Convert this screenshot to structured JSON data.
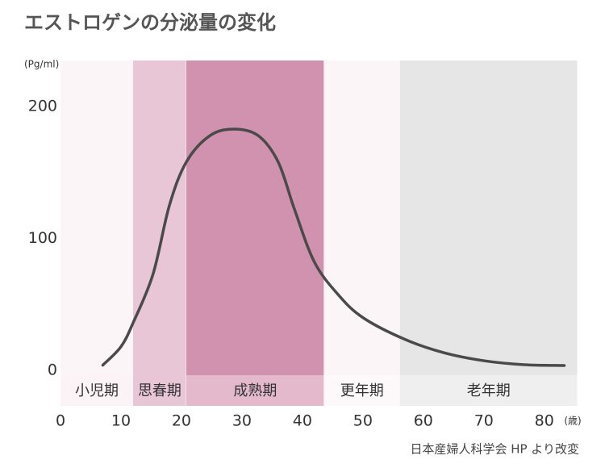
{
  "chart_data": {
    "type": "line",
    "title": "エストロゲンの分泌量の変化",
    "y_unit": "(Pg/ml)",
    "x_unit": "(歳)",
    "source": "日本産婦人科学会 HP より改変",
    "x": [
      7,
      10,
      12,
      15.3,
      18,
      20.8,
      24.7,
      28.7,
      32.7,
      36,
      38.7,
      42,
      46,
      50,
      56.7,
      63.3,
      70,
      76.7,
      83.3
    ],
    "values": [
      4,
      18,
      36,
      73,
      125,
      158,
      178,
      183,
      178,
      158,
      122,
      82,
      57,
      40,
      24,
      13.5,
      7.3,
      4.3,
      3.7
    ],
    "color": "#4a4a4a",
    "xlim": [
      0,
      85.5
    ],
    "ylim": [
      0,
      235
    ],
    "xticks": [
      0,
      10,
      20,
      30,
      40,
      50,
      60,
      70,
      80
    ],
    "yticks": [
      0,
      100,
      200
    ],
    "stages": [
      {
        "name": "小児期",
        "start": 0,
        "end": 12,
        "color": "#fcf5f8",
        "label_color": "#fbf3f6"
      },
      {
        "name": "思春期",
        "start": 12,
        "end": 20.8,
        "color": "#e8c6d5",
        "label_color": "#e8c6d5"
      },
      {
        "name": "成熟期",
        "start": 20.8,
        "end": 43.6,
        "color": "#d092af",
        "label_color": "#e4b9cc"
      },
      {
        "name": "更年期",
        "start": 43.6,
        "end": 56.1,
        "color": "#fcf5f8",
        "label_color": "#fdf9fa"
      },
      {
        "name": "老年期",
        "start": 56.1,
        "end": 85.5,
        "color": "#e6e6e6",
        "label_color": "#efefef"
      }
    ]
  }
}
